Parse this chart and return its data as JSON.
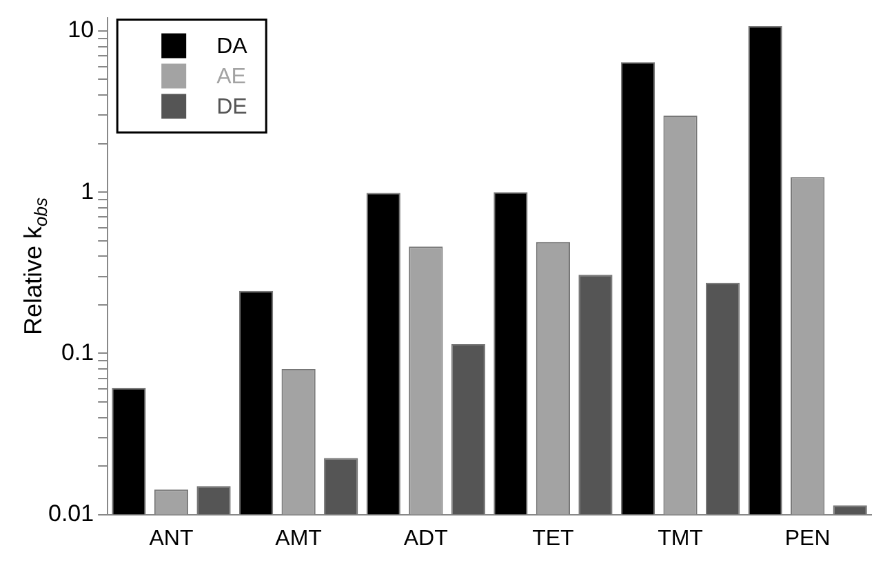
{
  "chart_data": {
    "type": "bar",
    "ylabel": "Relative k$_{obs}$",
    "log": "y",
    "legend": "top left",
    "grid": false,
    "categories": [
      "ANT",
      "AMT",
      "ADT",
      "TET",
      "TMT",
      "PEN"
    ],
    "series": [
      {
        "name": "DA",
        "color": "#000000",
        "values": [
          0.061,
          0.244,
          0.99,
          1.0,
          6.4,
          10.7
        ]
      },
      {
        "name": "AE",
        "color": "#a3a3a3",
        "values": [
          0.0143,
          0.08,
          0.46,
          0.49,
          2.98,
          1.24
        ]
      },
      {
        "name": "DE",
        "color": "#555555",
        "values": [
          0.015,
          0.0224,
          0.114,
          0.307,
          0.274,
          0.0114
        ]
      }
    ],
    "ylim": [
      0.01,
      12
    ],
    "yticks": [
      0.01,
      {
        "value": 0.02,
        "label": null
      },
      {
        "value": 0.03,
        "label": null
      },
      {
        "value": 0.04,
        "label": null
      },
      {
        "value": 0.05,
        "label": null
      },
      {
        "value": 0.06,
        "label": null
      },
      {
        "value": 0.07,
        "label": null
      },
      {
        "value": 0.08,
        "label": null
      },
      {
        "value": 0.09,
        "label": null
      },
      0.1,
      {
        "value": 0.2,
        "label": null
      },
      {
        "value": 0.3,
        "label": null
      },
      {
        "value": 0.4,
        "label": null
      },
      {
        "value": 0.5,
        "label": null
      },
      {
        "value": 0.6,
        "label": null
      },
      {
        "value": 0.7,
        "label": null
      },
      {
        "value": 0.8,
        "label": null
      },
      {
        "value": 0.9,
        "label": null
      },
      1,
      {
        "value": 2,
        "label": null
      },
      {
        "value": 3,
        "label": null
      },
      {
        "value": 4,
        "label": null
      },
      {
        "value": 5,
        "label": null
      },
      {
        "value": 6,
        "label": null
      },
      {
        "value": 7,
        "label": null
      },
      {
        "value": 8,
        "label": null
      },
      {
        "value": 9,
        "label": null
      },
      10
    ]
  }
}
